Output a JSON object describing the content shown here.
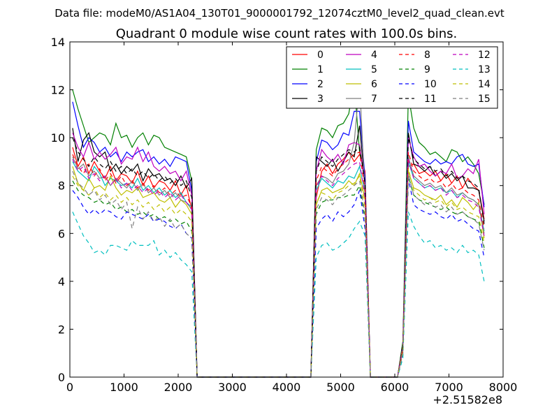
{
  "chart_data": {
    "type": "line",
    "suptitle": "Data file: modeM0/AS1A04_130T01_9000001792_12074cztM0_level2_quad_clean.evt",
    "title": "Quadrant 0 module wise count rates with 100.0s bins.",
    "xlabel": "",
    "ylabel": "",
    "x_offset_label": "+2.51582e8",
    "xlim": [
      0,
      8000
    ],
    "ylim": [
      0,
      14
    ],
    "xticks": [
      0,
      1000,
      2000,
      3000,
      4000,
      5000,
      6000,
      7000,
      8000
    ],
    "yticks": [
      0,
      2,
      4,
      6,
      8,
      10,
      12,
      14
    ],
    "xtick_labels": [
      "0",
      "1000",
      "2000",
      "3000",
      "4000",
      "5000",
      "6000",
      "7000",
      "8000"
    ],
    "ytick_labels": [
      "0",
      "2",
      "4",
      "6",
      "8",
      "10",
      "12",
      "14"
    ],
    "grid": false,
    "legend_position": "top-right",
    "legend_columns": 4,
    "x": [
      50,
      150,
      250,
      350,
      450,
      550,
      650,
      750,
      850,
      950,
      1050,
      1150,
      1250,
      1350,
      1450,
      1550,
      1650,
      1750,
      1850,
      1950,
      2050,
      2150,
      2250,
      2350,
      2450,
      3000,
      3500,
      4000,
      4450,
      4550,
      4650,
      4750,
      4850,
      4950,
      5050,
      5150,
      5250,
      5350,
      5450,
      5550,
      5650,
      5950,
      6050,
      6150,
      6250,
      6350,
      6450,
      6550,
      6650,
      6750,
      6850,
      6950,
      7050,
      7150,
      7250,
      7350,
      7450,
      7550,
      7650
    ],
    "series": [
      {
        "name": "0",
        "color": "#ff0000",
        "dash": "solid",
        "values": [
          9.6,
          8.8,
          9.2,
          8.5,
          9.0,
          8.6,
          8.3,
          8.8,
          8.2,
          8.5,
          8.4,
          8.1,
          8.6,
          8.0,
          8.4,
          7.9,
          8.2,
          8.1,
          7.8,
          8.2,
          7.6,
          8.0,
          7.0,
          0,
          0,
          0,
          0,
          0,
          0,
          7.5,
          8.6,
          8.9,
          8.5,
          8.9,
          9.1,
          9.4,
          9.0,
          9.3,
          8.6,
          0,
          0,
          0,
          0,
          1.2,
          8.8,
          8.9,
          8.5,
          8.6,
          8.4,
          8.6,
          8.2,
          8.5,
          8.1,
          8.4,
          7.9,
          8.3,
          8.0,
          7.8,
          6.6
        ]
      },
      {
        "name": "1",
        "color": "#008000",
        "dash": "solid",
        "values": [
          12.0,
          11.2,
          10.5,
          9.8,
          10.0,
          10.2,
          10.1,
          9.7,
          10.6,
          10.0,
          10.1,
          9.6,
          10.0,
          10.2,
          9.7,
          10.1,
          10.0,
          9.6,
          9.5,
          9.4,
          9.3,
          9.2,
          8.2,
          0,
          0,
          0,
          0,
          0,
          0,
          9.5,
          10.4,
          10.3,
          10.0,
          10.5,
          10.6,
          11.0,
          12.3,
          9.4,
          8.4,
          0,
          0,
          0,
          0,
          1.5,
          11.8,
          10.4,
          9.8,
          9.6,
          9.3,
          9.4,
          9.2,
          9.0,
          9.5,
          9.4,
          9.0,
          9.2,
          8.9,
          8.5,
          7.2
        ]
      },
      {
        "name": "2",
        "color": "#0000ff",
        "dash": "solid",
        "values": [
          11.5,
          10.5,
          9.6,
          10.0,
          9.8,
          9.4,
          9.6,
          9.2,
          9.4,
          9.0,
          9.4,
          9.2,
          9.4,
          9.5,
          9.0,
          9.2,
          8.9,
          9.1,
          8.8,
          9.2,
          9.1,
          9.0,
          7.8,
          0,
          0,
          0,
          0,
          0,
          0,
          9.0,
          9.9,
          9.8,
          9.5,
          9.7,
          10.2,
          10.1,
          11.1,
          11.1,
          8.3,
          0,
          0,
          0,
          0,
          1.3,
          10.7,
          9.4,
          9.2,
          9.0,
          8.9,
          9.1,
          8.9,
          9.0,
          8.9,
          9.2,
          9.3,
          8.9,
          8.8,
          8.9,
          7.1
        ]
      },
      {
        "name": "3",
        "color": "#000000",
        "dash": "solid",
        "values": [
          10.4,
          9.0,
          9.9,
          10.2,
          9.4,
          9.2,
          9.4,
          8.6,
          8.9,
          8.5,
          8.8,
          8.6,
          8.9,
          8.2,
          8.7,
          8.4,
          8.5,
          8.2,
          8.3,
          8.0,
          8.4,
          7.9,
          8.3,
          0,
          0,
          0,
          0,
          0,
          0,
          9.2,
          9.0,
          8.8,
          9.1,
          8.6,
          9.0,
          9.4,
          9.2,
          10.5,
          8.0,
          0,
          0,
          0,
          0,
          1.4,
          10.2,
          8.9,
          8.8,
          8.6,
          8.8,
          8.4,
          8.6,
          8.3,
          8.5,
          8.2,
          8.4,
          7.9,
          7.9,
          7.8,
          6.5
        ]
      },
      {
        "name": "4",
        "color": "#bf00bf",
        "dash": "solid",
        "values": [
          10.2,
          9.6,
          9.2,
          9.8,
          9.1,
          9.4,
          9.1,
          9.3,
          9.6,
          8.9,
          9.2,
          9.1,
          9.6,
          9.0,
          9.4,
          8.8,
          8.6,
          8.8,
          8.5,
          8.6,
          8.2,
          8.6,
          7.6,
          0,
          0,
          0,
          0,
          0,
          0,
          8.6,
          9.5,
          9.2,
          9.0,
          9.3,
          8.9,
          9.7,
          9.8,
          9.7,
          8.0,
          0,
          0,
          0,
          0,
          1.3,
          10.0,
          9.2,
          8.8,
          8.9,
          8.6,
          8.4,
          8.6,
          8.5,
          8.9,
          8.3,
          8.4,
          8.7,
          8.5,
          9.1,
          6.8
        ]
      },
      {
        "name": "5",
        "color": "#00bfbf",
        "dash": "solid",
        "values": [
          9.0,
          8.6,
          8.4,
          8.2,
          8.8,
          8.5,
          8.0,
          8.3,
          8.2,
          8.0,
          8.1,
          7.9,
          8.3,
          7.8,
          8.0,
          7.7,
          7.9,
          7.6,
          7.8,
          7.5,
          7.7,
          7.3,
          7.1,
          0,
          0,
          0,
          0,
          0,
          0,
          7.8,
          8.3,
          8.1,
          7.9,
          8.2,
          8.1,
          8.4,
          8.3,
          8.8,
          7.7,
          0,
          0,
          0,
          0,
          1.2,
          9.0,
          8.3,
          8.1,
          7.9,
          8.0,
          7.8,
          7.9,
          7.7,
          7.8,
          7.5,
          7.7,
          7.5,
          7.4,
          7.2,
          6.1
        ]
      },
      {
        "name": "6",
        "color": "#bfbf00",
        "dash": "solid",
        "values": [
          8.8,
          8.1,
          7.8,
          8.3,
          7.9,
          8.0,
          7.8,
          8.4,
          7.9,
          7.6,
          7.8,
          7.7,
          7.9,
          7.5,
          7.6,
          7.7,
          7.4,
          7.3,
          7.5,
          7.1,
          7.4,
          7.2,
          6.8,
          0,
          0,
          0,
          0,
          0,
          0,
          7.2,
          7.8,
          7.9,
          7.7,
          7.8,
          7.9,
          8.2,
          8.0,
          8.5,
          7.4,
          0,
          0,
          0,
          0,
          1.1,
          8.6,
          7.9,
          7.8,
          7.6,
          7.5,
          7.4,
          7.6,
          7.2,
          7.4,
          7.1,
          7.5,
          7.3,
          7.0,
          7.3,
          5.8
        ]
      },
      {
        "name": "7",
        "color": "#7f7f7f",
        "dash": "solid",
        "values": [
          9.2,
          8.7,
          8.9,
          8.4,
          8.6,
          8.3,
          8.4,
          8.0,
          8.3,
          8.1,
          7.9,
          8.2,
          7.8,
          8.1,
          7.7,
          7.9,
          7.6,
          7.8,
          7.5,
          7.7,
          7.4,
          7.3,
          7.0,
          0,
          0,
          0,
          0,
          0,
          0,
          8.0,
          8.4,
          8.3,
          8.1,
          8.5,
          8.6,
          8.9,
          9.8,
          12.3,
          7.6,
          0,
          0,
          0,
          0,
          1.3,
          9.2,
          8.4,
          8.2,
          8.0,
          8.1,
          7.9,
          8.0,
          7.7,
          7.9,
          7.6,
          7.7,
          7.5,
          7.4,
          7.2,
          6.0
        ]
      },
      {
        "name": "8",
        "color": "#ff0000",
        "dash": "dashed",
        "values": [
          9.3,
          8.8,
          8.5,
          8.9,
          8.4,
          8.7,
          8.2,
          8.5,
          8.1,
          8.4,
          8.0,
          8.2,
          7.9,
          8.1,
          7.8,
          8.0,
          7.7,
          7.9,
          7.6,
          7.8,
          7.5,
          7.6,
          7.1,
          0,
          0,
          0,
          0,
          0,
          0,
          8.2,
          8.8,
          8.6,
          8.4,
          8.7,
          8.9,
          9.1,
          9.3,
          9.4,
          7.8,
          0,
          0,
          0,
          0,
          1.2,
          9.4,
          8.6,
          8.4,
          8.2,
          8.3,
          8.1,
          8.2,
          7.9,
          8.1,
          7.8,
          7.9,
          7.7,
          7.6,
          7.4,
          6.2
        ]
      },
      {
        "name": "9",
        "color": "#008000",
        "dash": "dashed",
        "values": [
          8.2,
          7.8,
          7.6,
          7.5,
          7.3,
          7.4,
          7.2,
          7.3,
          7.0,
          7.1,
          6.9,
          7.0,
          6.8,
          6.9,
          6.7,
          6.8,
          6.6,
          6.7,
          6.5,
          6.6,
          6.4,
          6.5,
          6.1,
          0,
          0,
          0,
          0,
          0,
          0,
          6.8,
          7.3,
          7.4,
          7.4,
          7.5,
          7.5,
          7.6,
          7.6,
          8.0,
          6.6,
          0,
          0,
          0,
          0,
          1.0,
          8.4,
          7.6,
          7.4,
          7.3,
          7.2,
          7.1,
          7.0,
          7.1,
          6.9,
          6.8,
          6.9,
          6.7,
          6.6,
          6.5,
          5.4
        ]
      },
      {
        "name": "10",
        "color": "#0000ff",
        "dash": "dashed",
        "values": [
          7.8,
          7.5,
          7.1,
          6.8,
          7.0,
          6.8,
          7.0,
          6.9,
          6.7,
          6.6,
          6.9,
          6.8,
          6.7,
          6.6,
          6.8,
          6.5,
          6.6,
          6.5,
          6.3,
          6.2,
          6.4,
          6.0,
          5.8,
          0,
          0,
          0,
          0,
          0,
          0,
          6.2,
          6.6,
          6.8,
          6.5,
          6.9,
          6.7,
          6.9,
          7.2,
          7.8,
          6.2,
          0,
          0,
          0,
          0,
          1.0,
          8.3,
          7.2,
          7.0,
          6.9,
          6.8,
          6.9,
          6.7,
          6.6,
          6.8,
          6.5,
          6.6,
          6.4,
          6.2,
          6.1,
          5.0
        ]
      },
      {
        "name": "11",
        "color": "#000000",
        "dash": "dashed",
        "values": [
          10.0,
          9.4,
          9.1,
          8.8,
          9.2,
          8.9,
          8.7,
          9.0,
          8.6,
          8.8,
          8.5,
          8.7,
          8.4,
          8.6,
          8.3,
          8.5,
          8.2,
          8.4,
          8.1,
          8.3,
          8.0,
          8.2,
          7.5,
          0,
          0,
          0,
          0,
          0,
          0,
          8.6,
          9.2,
          9.0,
          8.8,
          9.1,
          9.3,
          9.5,
          9.4,
          9.6,
          8.1,
          0,
          0,
          0,
          0,
          1.3,
          10.0,
          9.1,
          8.9,
          8.7,
          8.8,
          8.6,
          8.7,
          8.4,
          8.6,
          8.3,
          8.4,
          8.2,
          8.1,
          7.9,
          6.4
        ]
      },
      {
        "name": "12",
        "color": "#bf00bf",
        "dash": "dashed",
        "values": [
          9.1,
          8.6,
          8.8,
          8.3,
          8.5,
          8.2,
          8.4,
          8.0,
          8.3,
          7.9,
          8.1,
          7.8,
          8.0,
          7.7,
          7.9,
          7.6,
          7.8,
          7.5,
          7.7,
          7.4,
          7.6,
          7.3,
          7.0,
          0,
          0,
          0,
          0,
          0,
          0,
          7.9,
          8.4,
          8.2,
          8.0,
          8.3,
          8.5,
          8.7,
          8.9,
          9.0,
          7.5,
          0,
          0,
          0,
          0,
          1.2,
          9.1,
          8.3,
          8.1,
          7.9,
          8.0,
          7.8,
          7.9,
          7.6,
          7.8,
          7.5,
          7.6,
          7.4,
          7.3,
          7.1,
          5.9
        ]
      },
      {
        "name": "13",
        "color": "#00bfbf",
        "dash": "dashed",
        "values": [
          6.9,
          6.4,
          5.9,
          5.6,
          5.2,
          5.3,
          5.1,
          5.5,
          5.5,
          5.4,
          5.3,
          5.7,
          5.5,
          5.5,
          5.5,
          5.7,
          5.1,
          5.3,
          5.0,
          5.2,
          4.9,
          4.7,
          4.4,
          0,
          0,
          0,
          0,
          0,
          0,
          5.0,
          5.5,
          5.6,
          5.3,
          5.4,
          5.6,
          5.8,
          6.2,
          6.5,
          5.9,
          0,
          0,
          0,
          0,
          0.8,
          6.9,
          6.3,
          5.9,
          5.6,
          5.7,
          5.4,
          5.5,
          5.3,
          5.4,
          5.2,
          5.5,
          5.2,
          5.3,
          5.1,
          4.0
        ]
      },
      {
        "name": "14",
        "color": "#bfbf00",
        "dash": "dashed",
        "values": [
          8.4,
          8.0,
          7.8,
          7.6,
          7.9,
          7.5,
          7.7,
          7.4,
          7.6,
          7.3,
          7.5,
          7.2,
          7.4,
          7.1,
          7.3,
          7.0,
          7.2,
          6.9,
          7.1,
          6.8,
          7.0,
          6.8,
          6.5,
          0,
          0,
          0,
          0,
          0,
          0,
          7.3,
          7.7,
          7.6,
          7.4,
          7.7,
          7.8,
          8.0,
          8.1,
          8.4,
          7.1,
          0,
          0,
          0,
          0,
          1.1,
          8.7,
          7.8,
          7.6,
          7.4,
          7.5,
          7.3,
          7.4,
          7.1,
          7.3,
          7.0,
          7.1,
          6.9,
          6.8,
          6.7,
          5.6
        ]
      },
      {
        "name": "15",
        "color": "#7f7f7f",
        "dash": "dashed",
        "values": [
          8.6,
          8.1,
          7.9,
          7.6,
          7.8,
          7.4,
          7.6,
          7.2,
          7.4,
          7.0,
          7.3,
          6.2,
          7.1,
          6.6,
          6.9,
          6.5,
          6.7,
          6.3,
          6.6,
          6.2,
          6.4,
          6.0,
          5.8,
          0,
          0,
          0,
          0,
          0,
          0,
          7.0,
          7.5,
          7.4,
          7.2,
          7.5,
          7.6,
          7.8,
          8.0,
          8.2,
          6.8,
          0,
          0,
          0,
          0,
          1.0,
          8.5,
          7.6,
          7.4,
          7.2,
          7.3,
          7.1,
          7.2,
          6.9,
          7.1,
          6.8,
          6.9,
          6.7,
          6.6,
          6.4,
          5.3
        ]
      }
    ]
  }
}
